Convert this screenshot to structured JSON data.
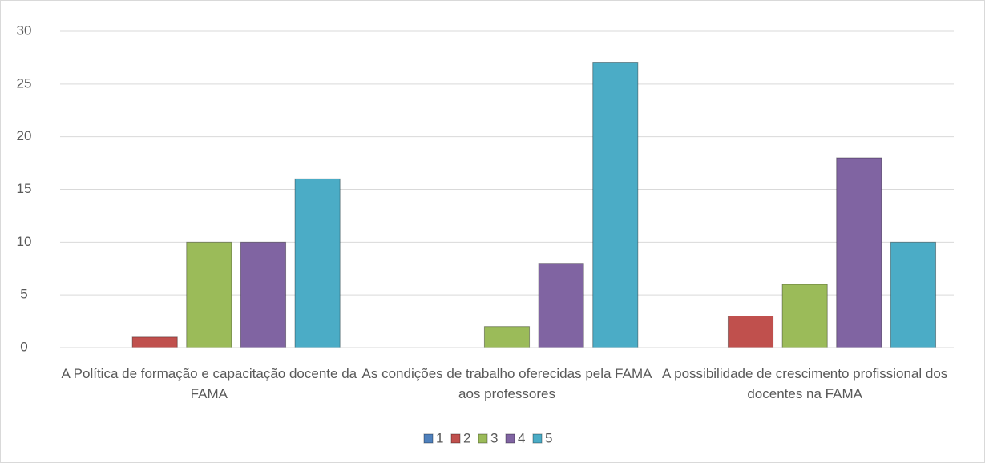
{
  "chart_data": {
    "type": "bar",
    "categories": [
      "A Política de formação e capacitação docente da FAMA",
      "As condições de trabalho oferecidas pela FAMA aos professores",
      "A possibilidade de crescimento profissional dos docentes na FAMA"
    ],
    "series": [
      {
        "name": "1",
        "color": "#4f81bd",
        "values": [
          0,
          0,
          0
        ]
      },
      {
        "name": "2",
        "color": "#c0504d",
        "values": [
          1,
          0,
          3
        ]
      },
      {
        "name": "3",
        "color": "#9bbb59",
        "values": [
          10,
          2,
          6
        ]
      },
      {
        "name": "4",
        "color": "#8064a2",
        "values": [
          10,
          8,
          18
        ]
      },
      {
        "name": "5",
        "color": "#4bacc6",
        "values": [
          16,
          27,
          10
        ]
      }
    ],
    "ylim": [
      0,
      30
    ],
    "yticks": [
      0,
      5,
      10,
      15,
      20,
      25,
      30
    ],
    "grid": true,
    "legend": "bottom"
  }
}
